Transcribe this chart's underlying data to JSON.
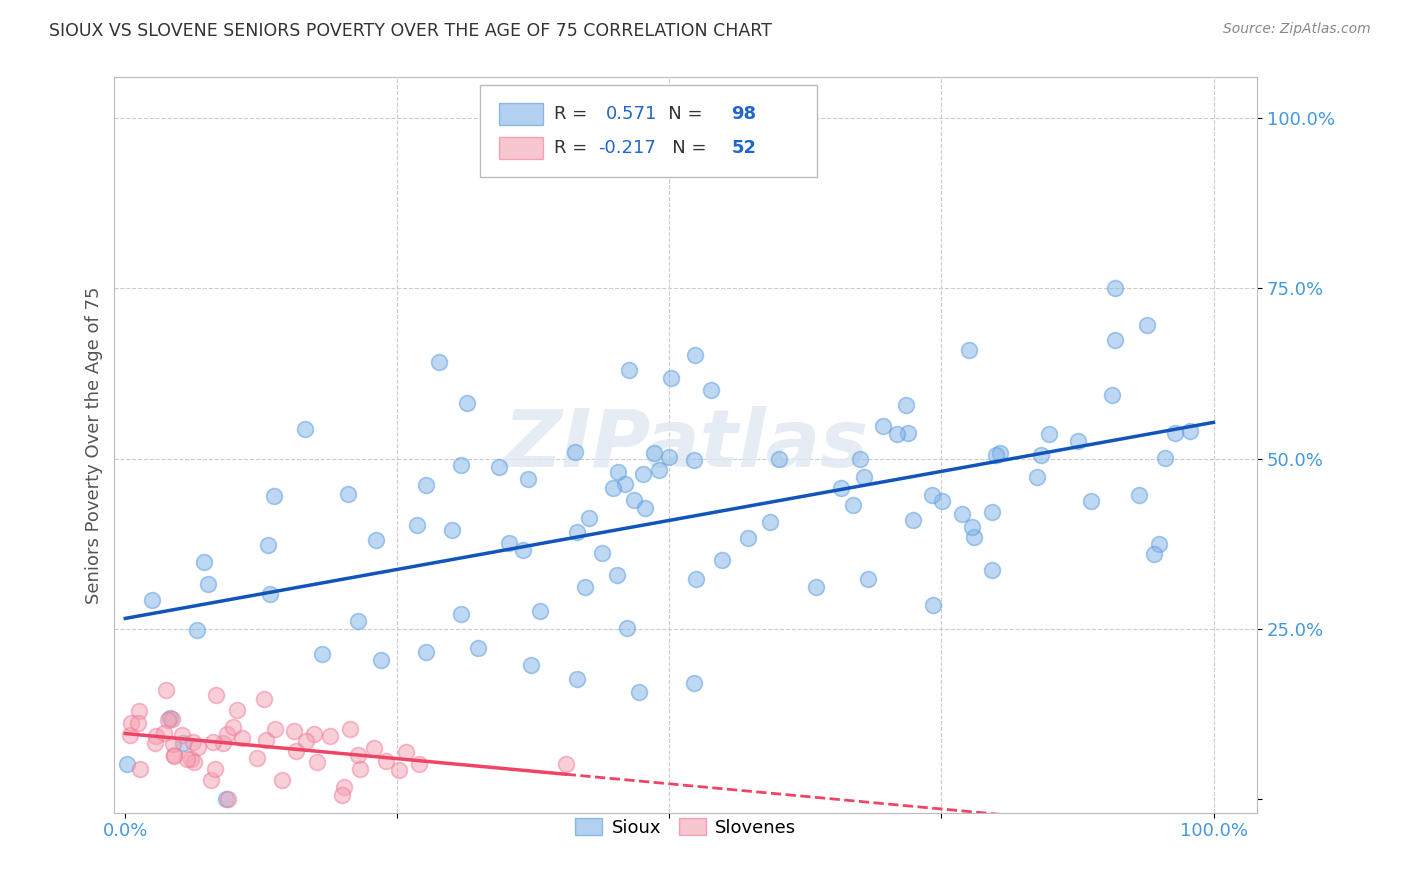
{
  "title": "SIOUX VS SLOVENE SENIORS POVERTY OVER THE AGE OF 75 CORRELATION CHART",
  "source": "Source: ZipAtlas.com",
  "ylabel_label": "Seniors Poverty Over the Age of 75",
  "legend_sioux": "Sioux",
  "legend_slovenes": "Slovenes",
  "R_sioux": 0.571,
  "N_sioux": 98,
  "R_slovene": -0.217,
  "N_slovene": 52,
  "sioux_color": "#7FB3E8",
  "slovene_color": "#F4A0B0",
  "sioux_edge": "#5599DD",
  "slovene_edge": "#EE7799",
  "trend_sioux_color": "#1155BB",
  "trend_slovene_color": "#EE4466",
  "watermark": "ZIPatlas",
  "background_color": "#FFFFFF",
  "grid_color": "#CCCCCC",
  "title_color": "#333333",
  "tick_label_color": "#4499DD",
  "axis_label_color": "#555555",
  "legend_R_color": "#333333",
  "legend_N_color": "#2266CC"
}
